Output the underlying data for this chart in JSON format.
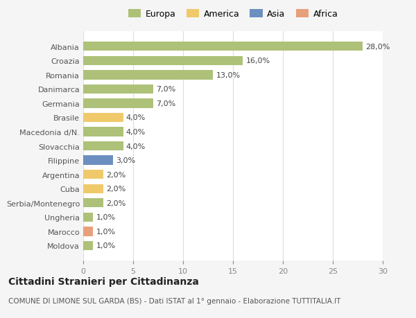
{
  "categories": [
    "Albania",
    "Croazia",
    "Romania",
    "Danimarca",
    "Germania",
    "Brasile",
    "Macedonia d/N.",
    "Slovacchia",
    "Filippine",
    "Argentina",
    "Cuba",
    "Serbia/Montenegro",
    "Ungheria",
    "Marocco",
    "Moldova"
  ],
  "values": [
    28.0,
    16.0,
    13.0,
    7.0,
    7.0,
    4.0,
    4.0,
    4.0,
    3.0,
    2.0,
    2.0,
    2.0,
    1.0,
    1.0,
    1.0
  ],
  "colors": [
    "#adc178",
    "#adc178",
    "#adc178",
    "#adc178",
    "#adc178",
    "#f0c96b",
    "#adc178",
    "#adc178",
    "#6b8fbf",
    "#f0c96b",
    "#f0c96b",
    "#adc178",
    "#adc178",
    "#e8a07a",
    "#adc178"
  ],
  "legend_labels": [
    "Europa",
    "America",
    "Asia",
    "Africa"
  ],
  "legend_colors": [
    "#adc178",
    "#f0c96b",
    "#6b8fbf",
    "#e8a07a"
  ],
  "title": "Cittadini Stranieri per Cittadinanza",
  "subtitle": "COMUNE DI LIMONE SUL GARDA (BS) - Dati ISTAT al 1° gennaio - Elaborazione TUTTITALIA.IT",
  "xlim": [
    0,
    30
  ],
  "xticks": [
    0,
    5,
    10,
    15,
    20,
    25,
    30
  ],
  "bg_color": "#f5f5f5",
  "plot_bg_color": "#ffffff",
  "grid_color": "#dddddd",
  "label_fontsize": 8,
  "value_fontsize": 8,
  "title_fontsize": 10,
  "subtitle_fontsize": 7.5,
  "legend_fontsize": 9
}
